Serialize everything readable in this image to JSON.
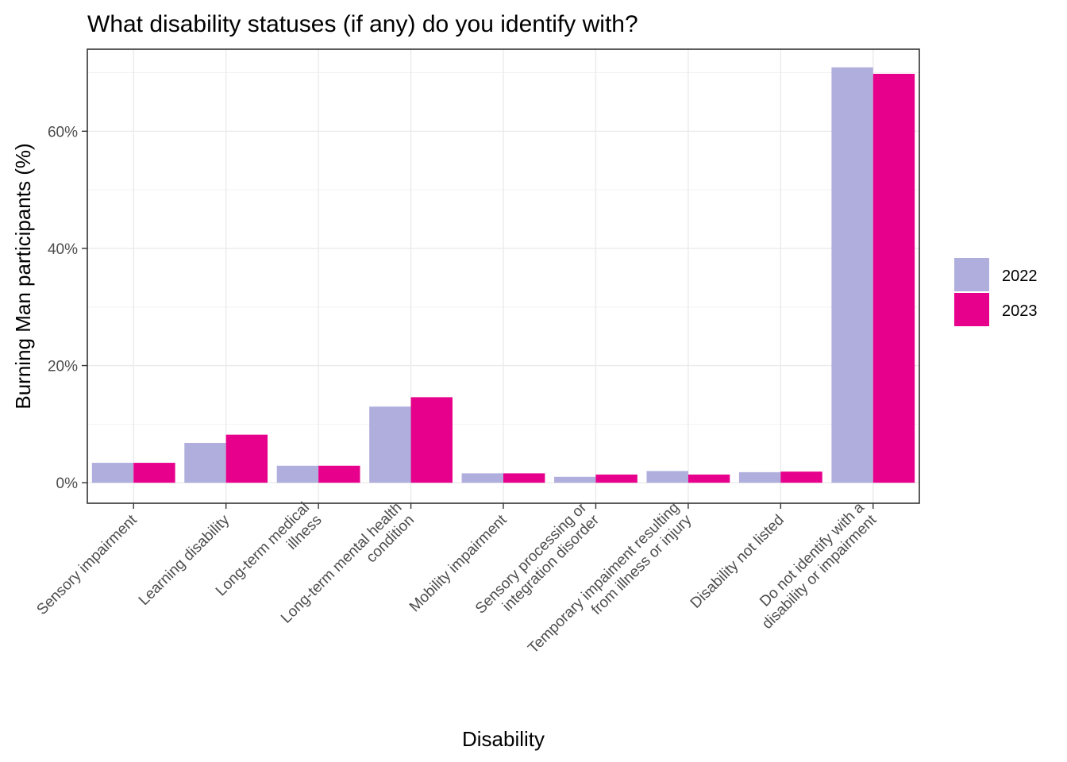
{
  "chart_data": {
    "type": "bar",
    "title": "What disability statuses (if any) do you identify with?",
    "xlabel": "Disability",
    "ylabel": "Burning Man participants (%)",
    "ylim": [
      -3.5,
      74
    ],
    "y_ticks": [
      0,
      20,
      40,
      60
    ],
    "y_tick_labels": [
      "0%",
      "20%",
      "40%",
      "60%"
    ],
    "grid": true,
    "legend_position": "right",
    "categories": [
      [
        "Sensory impairment"
      ],
      [
        "Learning disability"
      ],
      [
        "Long-term medical",
        "illness"
      ],
      [
        "Long-term mental health",
        "condition"
      ],
      [
        "Mobility impairment"
      ],
      [
        "Sensory processing or",
        "integration disorder"
      ],
      [
        "Temporary impaiment resulting",
        "from illness or injury"
      ],
      [
        "Disability not listed"
      ],
      [
        "Do not identify with a",
        "disability or impairment"
      ]
    ],
    "series": [
      {
        "name": "2022",
        "color": "#b0aedd",
        "values": [
          3.4,
          6.8,
          2.9,
          13.0,
          1.6,
          1.0,
          2.0,
          1.8,
          70.9
        ]
      },
      {
        "name": "2023",
        "color": "#e7008c",
        "values": [
          3.4,
          8.2,
          2.9,
          14.6,
          1.6,
          1.4,
          1.4,
          1.9,
          69.8
        ]
      }
    ]
  }
}
